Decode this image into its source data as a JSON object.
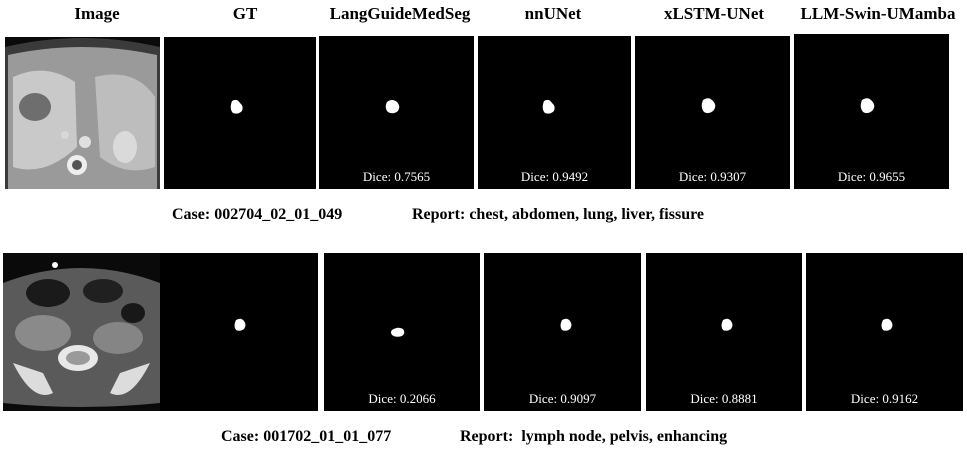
{
  "columns": [
    "Image",
    "GT",
    "LangGuideMedSeg",
    "nnUNet",
    "xLSTM-UNet",
    "LLM-Swin-UMamba"
  ],
  "rows": [
    {
      "case_label": "Case: 002704_02_01_049",
      "report_label": "Report: chest, abdomen, lung, liver, fissure",
      "dice": [
        "Dice: 0.7565",
        "Dice: 0.9492",
        "Dice: 0.9307",
        "Dice: 0.9655"
      ]
    },
    {
      "case_label": "Case: 001702_01_01_077",
      "report_label": "Report:  lymph node, pelvis, enhancing",
      "dice": [
        "Dice: 0.2066",
        "Dice: 0.9097",
        "Dice: 0.8881",
        "Dice: 0.9162"
      ]
    }
  ]
}
